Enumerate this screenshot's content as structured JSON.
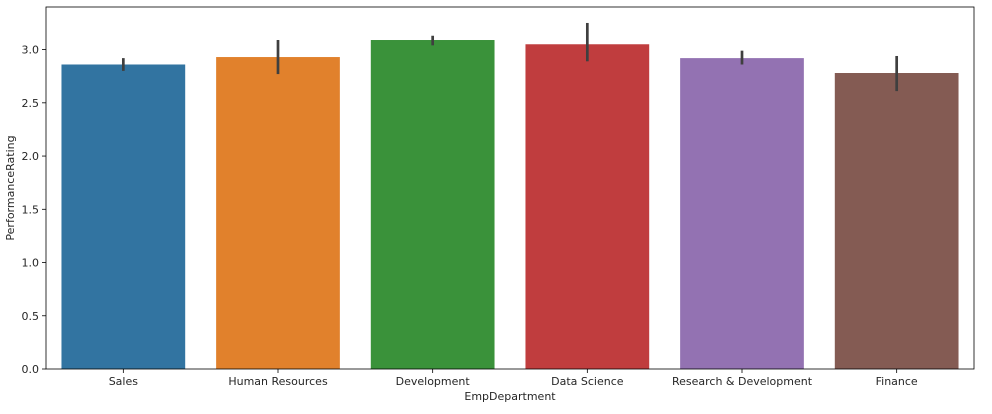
{
  "chart_data": {
    "type": "bar",
    "title": "",
    "xlabel": "EmpDepartment",
    "ylabel": "PerformanceRating",
    "categories": [
      "Sales",
      "Human Resources",
      "Development",
      "Data Science",
      "Research & Development",
      "Finance"
    ],
    "values": [
      2.86,
      2.93,
      3.09,
      3.05,
      2.92,
      2.78
    ],
    "error_bars": [
      [
        2.8,
        2.92
      ],
      [
        2.77,
        3.09
      ],
      [
        3.04,
        3.13
      ],
      [
        2.89,
        3.25
      ],
      [
        2.86,
        2.99
      ],
      [
        2.61,
        2.94
      ]
    ],
    "colors": [
      "#3274a1",
      "#e1812c",
      "#3a923a",
      "#c03d3e",
      "#9372b2",
      "#845b53"
    ],
    "error_bar_color": "#3f3f3f",
    "ylim": [
      0,
      3.4
    ],
    "yticks": [
      "0.0",
      "0.5",
      "1.0",
      "1.5",
      "2.0",
      "2.5",
      "3.0"
    ],
    "grid": false,
    "legend": "none"
  }
}
